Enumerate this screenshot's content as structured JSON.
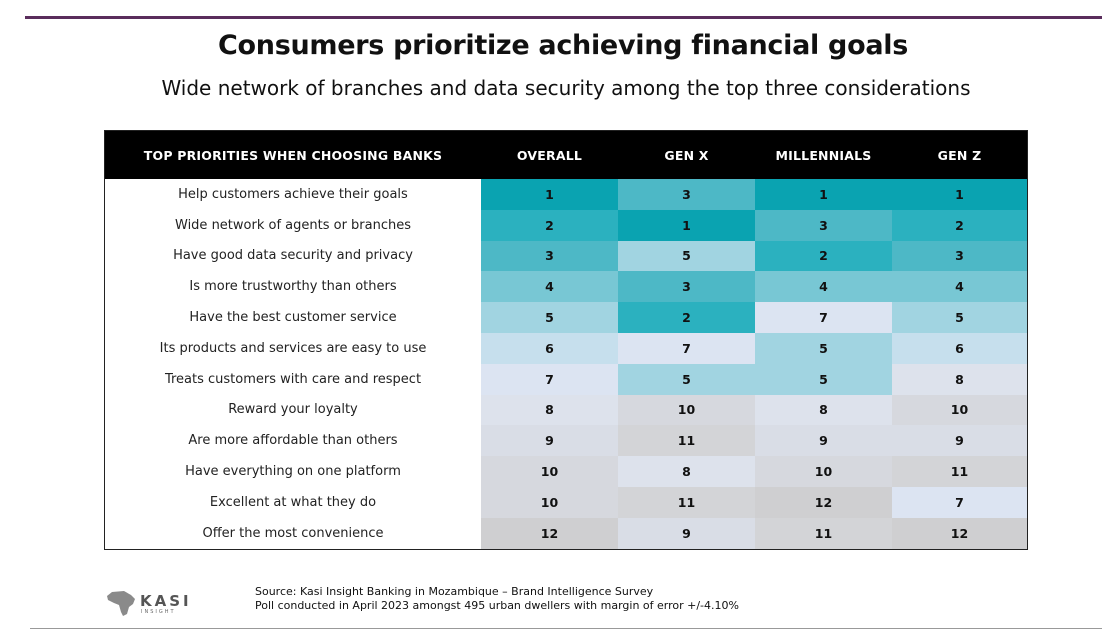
{
  "title": "Consumers prioritize achieving financial goals",
  "subtitle": "Wide network of branches and data security among the top three considerations",
  "chart_data": {
    "type": "table",
    "columns": [
      "TOP PRIORITIES WHEN CHOOSING BANKS",
      "OVERALL",
      "GEN X",
      "MILLENNIALS",
      "GEN Z"
    ],
    "rows": [
      {
        "label": "Help customers achieve their goals",
        "values": [
          1,
          3,
          1,
          1
        ]
      },
      {
        "label": "Wide network of agents or branches",
        "values": [
          2,
          1,
          3,
          2
        ]
      },
      {
        "label": "Have good data security and privacy",
        "values": [
          3,
          5,
          2,
          3
        ]
      },
      {
        "label": "Is more trustworthy than others",
        "values": [
          4,
          3,
          4,
          4
        ]
      },
      {
        "label": "Have the best customer service",
        "values": [
          5,
          2,
          7,
          5
        ]
      },
      {
        "label": "Its products and services are easy to use",
        "values": [
          6,
          7,
          5,
          6
        ]
      },
      {
        "label": "Treats customers with care and respect",
        "values": [
          7,
          5,
          5,
          8
        ]
      },
      {
        "label": "Reward your loyalty",
        "values": [
          8,
          10,
          8,
          10
        ]
      },
      {
        "label": "Are more affordable than others",
        "values": [
          9,
          11,
          9,
          9
        ]
      },
      {
        "label": "Have everything on one platform",
        "values": [
          10,
          8,
          10,
          11
        ]
      },
      {
        "label": "Excellent at what they do",
        "values": [
          10,
          11,
          12,
          7
        ]
      },
      {
        "label": "Offer the most convenience",
        "values": [
          12,
          9,
          11,
          12
        ]
      }
    ],
    "rank_colors": {
      "1": "#0aa3b1",
      "2": "#2bb1bf",
      "3": "#4db8c6",
      "4": "#78c7d4",
      "5": "#a1d4e1",
      "6": "#c6dfed",
      "7": "#dce4f2",
      "8": "#dde2ec",
      "9": "#d9dde6",
      "10": "#d6d8de",
      "11": "#d3d4d7",
      "12": "#cfcfd1"
    }
  },
  "logo": {
    "name": "KASI",
    "tagline": "INSIGHT"
  },
  "source": {
    "line1": "Source: Kasi Insight Banking in Mozambique – Brand Intelligence Survey",
    "line2": "Poll conducted in April 2023 amongst 495 urban dwellers with margin of error +/-4.10%"
  },
  "colors": {
    "rule": "#5a2d5c",
    "header_bg": "#000000"
  }
}
